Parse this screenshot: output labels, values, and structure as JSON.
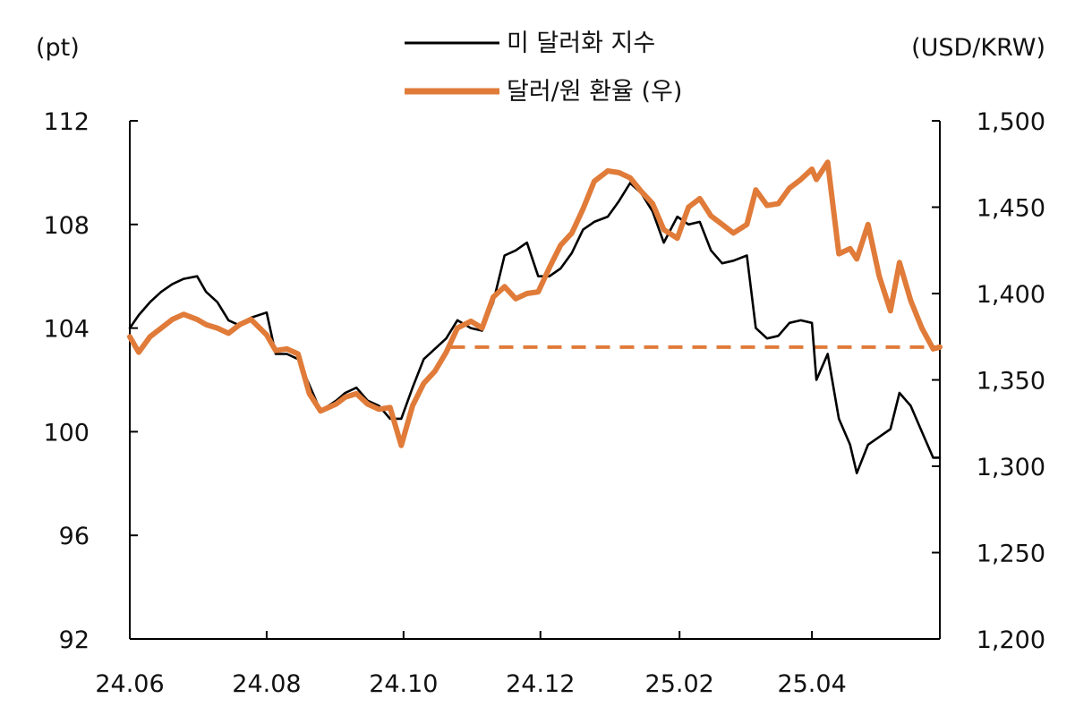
{
  "chart_data": {
    "type": "line",
    "title": "",
    "left_unit": "(pt)",
    "right_unit": "(USD/KRW)",
    "legend": [
      {
        "label": "미 달러화 지수",
        "color": "#000000"
      },
      {
        "label": "달러/원 환율 (우)",
        "color": "#E07B39"
      }
    ],
    "legend_position": "top-center",
    "grid": false,
    "y_left": {
      "min": 92,
      "max": 112,
      "ticks": [
        "112",
        "108",
        "104",
        "100",
        "96",
        "92"
      ]
    },
    "y_right": {
      "min": 1200,
      "max": 1500,
      "ticks": [
        "1,500",
        "1,450",
        "1,400",
        "1,350",
        "1,300",
        "1,250",
        "1,200"
      ]
    },
    "x_range": [
      "2024-06-01",
      "2025-05-28"
    ],
    "x_ticks": [
      {
        "date": "2024-06-01",
        "label": "24.06"
      },
      {
        "date": "2024-08-01",
        "label": "24.08"
      },
      {
        "date": "2024-10-01",
        "label": "24.10"
      },
      {
        "date": "2024-12-01",
        "label": "24.12"
      },
      {
        "date": "2025-02-01",
        "label": "25.02"
      },
      {
        "date": "2025-04-01",
        "label": "25.04"
      }
    ],
    "reference_line": {
      "axis": "right",
      "value": 1369,
      "from": "2024-10-22",
      "to": "2025-05-28",
      "color": "#E07B39",
      "style": "dashed"
    },
    "series": [
      {
        "name": "미 달러화 지수",
        "axis": "left",
        "color": "#000000",
        "points": [
          [
            "2024-06-01",
            104.0
          ],
          [
            "2024-06-05",
            104.5
          ],
          [
            "2024-06-10",
            105.0
          ],
          [
            "2024-06-15",
            105.4
          ],
          [
            "2024-06-20",
            105.7
          ],
          [
            "2024-06-25",
            105.9
          ],
          [
            "2024-07-01",
            106.0
          ],
          [
            "2024-07-05",
            105.4
          ],
          [
            "2024-07-10",
            105.0
          ],
          [
            "2024-07-15",
            104.3
          ],
          [
            "2024-07-20",
            104.1
          ],
          [
            "2024-07-25",
            104.4
          ],
          [
            "2024-08-01",
            104.6
          ],
          [
            "2024-08-05",
            103.0
          ],
          [
            "2024-08-10",
            103.0
          ],
          [
            "2024-08-15",
            102.8
          ],
          [
            "2024-08-20",
            101.8
          ],
          [
            "2024-08-25",
            100.8
          ],
          [
            "2024-09-01",
            101.2
          ],
          [
            "2024-09-05",
            101.5
          ],
          [
            "2024-09-10",
            101.7
          ],
          [
            "2024-09-15",
            101.2
          ],
          [
            "2024-09-20",
            101.0
          ],
          [
            "2024-09-25",
            100.5
          ],
          [
            "2024-09-30",
            100.5
          ],
          [
            "2024-10-05",
            101.7
          ],
          [
            "2024-10-10",
            102.8
          ],
          [
            "2024-10-15",
            103.2
          ],
          [
            "2024-10-20",
            103.6
          ],
          [
            "2024-10-25",
            104.3
          ],
          [
            "2024-10-31",
            104.0
          ],
          [
            "2024-11-05",
            103.9
          ],
          [
            "2024-11-10",
            105.0
          ],
          [
            "2024-11-15",
            106.8
          ],
          [
            "2024-11-20",
            107.0
          ],
          [
            "2024-11-25",
            107.3
          ],
          [
            "2024-11-30",
            106.0
          ],
          [
            "2024-12-05",
            106.0
          ],
          [
            "2024-12-10",
            106.3
          ],
          [
            "2024-12-15",
            106.9
          ],
          [
            "2024-12-20",
            107.8
          ],
          [
            "2024-12-25",
            108.1
          ],
          [
            "2024-12-31",
            108.3
          ],
          [
            "2025-01-05",
            108.9
          ],
          [
            "2025-01-10",
            109.6
          ],
          [
            "2025-01-15",
            109.2
          ],
          [
            "2025-01-20",
            108.5
          ],
          [
            "2025-01-25",
            107.3
          ],
          [
            "2025-01-31",
            108.3
          ],
          [
            "2025-02-05",
            108.0
          ],
          [
            "2025-02-10",
            108.1
          ],
          [
            "2025-02-15",
            107.0
          ],
          [
            "2025-02-20",
            106.5
          ],
          [
            "2025-02-25",
            106.6
          ],
          [
            "2025-03-03",
            106.8
          ],
          [
            "2025-03-07",
            104.0
          ],
          [
            "2025-03-12",
            103.6
          ],
          [
            "2025-03-17",
            103.7
          ],
          [
            "2025-03-22",
            104.2
          ],
          [
            "2025-03-27",
            104.3
          ],
          [
            "2025-04-01",
            104.2
          ],
          [
            "2025-04-03",
            102.0
          ],
          [
            "2025-04-08",
            103.0
          ],
          [
            "2025-04-13",
            100.5
          ],
          [
            "2025-04-18",
            99.5
          ],
          [
            "2025-04-21",
            98.4
          ],
          [
            "2025-04-26",
            99.5
          ],
          [
            "2025-05-01",
            99.8
          ],
          [
            "2025-05-06",
            100.1
          ],
          [
            "2025-05-10",
            101.5
          ],
          [
            "2025-05-15",
            101.0
          ],
          [
            "2025-05-20",
            100.0
          ],
          [
            "2025-05-25",
            99.0
          ],
          [
            "2025-05-28",
            99.0
          ]
        ]
      },
      {
        "name": "달러/원 환율 (우)",
        "axis": "right",
        "color": "#E07B39",
        "points": [
          [
            "2024-06-01",
            1375
          ],
          [
            "2024-06-05",
            1366
          ],
          [
            "2024-06-10",
            1375
          ],
          [
            "2024-06-15",
            1380
          ],
          [
            "2024-06-20",
            1385
          ],
          [
            "2024-06-25",
            1388
          ],
          [
            "2024-07-01",
            1385
          ],
          [
            "2024-07-05",
            1382
          ],
          [
            "2024-07-10",
            1380
          ],
          [
            "2024-07-15",
            1377
          ],
          [
            "2024-07-20",
            1382
          ],
          [
            "2024-07-25",
            1385
          ],
          [
            "2024-08-01",
            1376
          ],
          [
            "2024-08-05",
            1367
          ],
          [
            "2024-08-10",
            1368
          ],
          [
            "2024-08-15",
            1365
          ],
          [
            "2024-08-20",
            1342
          ],
          [
            "2024-08-25",
            1332
          ],
          [
            "2024-09-01",
            1336
          ],
          [
            "2024-09-05",
            1340
          ],
          [
            "2024-09-10",
            1342
          ],
          [
            "2024-09-15",
            1336
          ],
          [
            "2024-09-20",
            1333
          ],
          [
            "2024-09-25",
            1334
          ],
          [
            "2024-09-30",
            1312
          ],
          [
            "2024-10-05",
            1335
          ],
          [
            "2024-10-10",
            1348
          ],
          [
            "2024-10-15",
            1355
          ],
          [
            "2024-10-20",
            1366
          ],
          [
            "2024-10-25",
            1380
          ],
          [
            "2024-10-31",
            1384
          ],
          [
            "2024-11-05",
            1380
          ],
          [
            "2024-11-10",
            1398
          ],
          [
            "2024-11-15",
            1404
          ],
          [
            "2024-11-20",
            1397
          ],
          [
            "2024-11-25",
            1400
          ],
          [
            "2024-11-30",
            1401
          ],
          [
            "2024-12-05",
            1415
          ],
          [
            "2024-12-10",
            1428
          ],
          [
            "2024-12-15",
            1435
          ],
          [
            "2024-12-20",
            1449
          ],
          [
            "2024-12-25",
            1465
          ],
          [
            "2024-12-31",
            1471
          ],
          [
            "2025-01-05",
            1470
          ],
          [
            "2025-01-10",
            1467
          ],
          [
            "2025-01-15",
            1459
          ],
          [
            "2025-01-20",
            1452
          ],
          [
            "2025-01-25",
            1437
          ],
          [
            "2025-01-31",
            1432
          ],
          [
            "2025-02-05",
            1450
          ],
          [
            "2025-02-10",
            1455
          ],
          [
            "2025-02-15",
            1445
          ],
          [
            "2025-02-20",
            1440
          ],
          [
            "2025-02-25",
            1435
          ],
          [
            "2025-03-03",
            1440
          ],
          [
            "2025-03-07",
            1460
          ],
          [
            "2025-03-12",
            1451
          ],
          [
            "2025-03-17",
            1452
          ],
          [
            "2025-03-22",
            1461
          ],
          [
            "2025-03-27",
            1466
          ],
          [
            "2025-04-01",
            1472
          ],
          [
            "2025-04-03",
            1466
          ],
          [
            "2025-04-08",
            1476
          ],
          [
            "2025-04-13",
            1423
          ],
          [
            "2025-04-18",
            1426
          ],
          [
            "2025-04-21",
            1420
          ],
          [
            "2025-04-26",
            1440
          ],
          [
            "2025-05-01",
            1410
          ],
          [
            "2025-05-06",
            1390
          ],
          [
            "2025-05-10",
            1418
          ],
          [
            "2025-05-15",
            1396
          ],
          [
            "2025-05-20",
            1380
          ],
          [
            "2025-05-25",
            1368
          ],
          [
            "2025-05-28",
            1369
          ]
        ]
      }
    ]
  }
}
